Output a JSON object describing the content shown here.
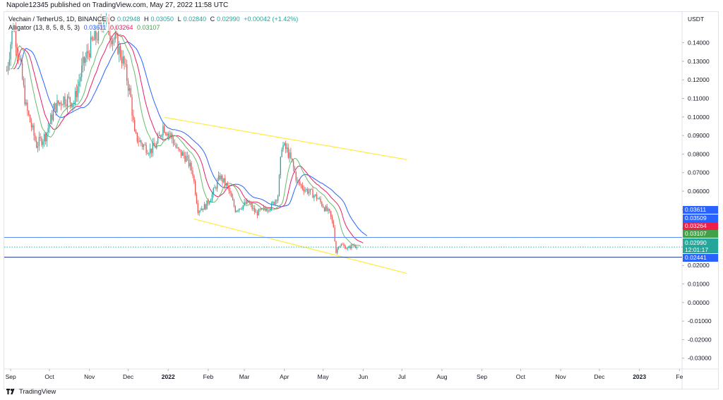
{
  "header": {
    "published": "Napole12345 published on TradingView.com, May 27, 2022 11:58 UTC"
  },
  "legend": {
    "symbol": "Vechain / TetherUS, 1D, BINANCE",
    "o_label": "O",
    "o_val": "0.02948",
    "h_label": "H",
    "h_val": "0.03050",
    "l_label": "L",
    "l_val": "0.02840",
    "c_label": "C",
    "c_val": "0.02990",
    "change": "+0.00042 (+1.42%)",
    "alligator_label": "Alligator (13, 8, 5, 8, 5, 3)",
    "jaw_val": "0.03611",
    "teeth_val": "0.03264",
    "lips_val": "0.03107"
  },
  "colors": {
    "up": "#26a69a",
    "down": "#ef5350",
    "jaw": "#2962ff",
    "teeth": "#e91e63",
    "lips": "#66bb6a",
    "channel": "#ffeb3b",
    "hline": "#2962ff",
    "current": "#26a69a"
  },
  "price_tags": [
    {
      "text": "0.03611",
      "bg": "#2962ff"
    },
    {
      "text": "0.03509",
      "bg": "#2962ff"
    },
    {
      "text": "0.03264",
      "bg": "#ef1f4a"
    },
    {
      "text": "0.03107",
      "bg": "#43a047"
    },
    {
      "text": "0.02441",
      "bg": "#2962ff"
    }
  ],
  "current_tag": {
    "price": "0.02990",
    "countdown": "12:01:17"
  },
  "footer": {
    "brand": "TradingView"
  },
  "chart_data": {
    "type": "candlestick",
    "title": "Vechain / TetherUS, 1D, BINANCE",
    "y_axis_label": "USDT",
    "ylim": [
      -0.035,
      0.1525
    ],
    "y_ticks": [
      "0.14000",
      "0.13000",
      "0.12000",
      "0.11000",
      "0.10000",
      "0.09000",
      "0.08000",
      "0.07000",
      "0.06000",
      "0.05000",
      "0.04000",
      "0.03000",
      "0.02000",
      "0.01000",
      "0.00000",
      "-0.01000",
      "-0.02000",
      "-0.03000"
    ],
    "x_ticks": [
      "Sep",
      "Oct",
      "Nov",
      "Dec",
      "2022",
      "Feb",
      "Mar",
      "Apr",
      "May",
      "Jun",
      "Jul",
      "Aug",
      "Sep",
      "Oct",
      "Nov",
      "Dec",
      "2023",
      "Fe"
    ],
    "close_anchors": [
      [
        "2021-08-29",
        0.125
      ],
      [
        "2021-09-03",
        0.15
      ],
      [
        "2021-09-08",
        0.13
      ],
      [
        "2021-09-13",
        0.105
      ],
      [
        "2021-09-21",
        0.085
      ],
      [
        "2021-09-28",
        0.09
      ],
      [
        "2021-10-05",
        0.105
      ],
      [
        "2021-10-12",
        0.11
      ],
      [
        "2021-10-20",
        0.108
      ],
      [
        "2021-10-27",
        0.128
      ],
      [
        "2021-11-03",
        0.14
      ],
      [
        "2021-11-08",
        0.145
      ],
      [
        "2021-11-12",
        0.155
      ],
      [
        "2021-11-17",
        0.145
      ],
      [
        "2021-11-22",
        0.14
      ],
      [
        "2021-11-28",
        0.128
      ],
      [
        "2021-12-03",
        0.11
      ],
      [
        "2021-12-06",
        0.09
      ],
      [
        "2021-12-12",
        0.085
      ],
      [
        "2021-12-18",
        0.082
      ],
      [
        "2021-12-23",
        0.085
      ],
      [
        "2021-12-28",
        0.095
      ],
      [
        "2022-01-03",
        0.09
      ],
      [
        "2022-01-08",
        0.082
      ],
      [
        "2022-01-15",
        0.078
      ],
      [
        "2022-01-20",
        0.07
      ],
      [
        "2022-01-24",
        0.05
      ],
      [
        "2022-01-30",
        0.052
      ],
      [
        "2022-02-04",
        0.058
      ],
      [
        "2022-02-10",
        0.068
      ],
      [
        "2022-02-16",
        0.062
      ],
      [
        "2022-02-22",
        0.05
      ],
      [
        "2022-02-27",
        0.052
      ],
      [
        "2022-03-04",
        0.054
      ],
      [
        "2022-03-10",
        0.048
      ],
      [
        "2022-03-16",
        0.05
      ],
      [
        "2022-03-22",
        0.052
      ],
      [
        "2022-03-27",
        0.058
      ],
      [
        "2022-03-30",
        0.085
      ],
      [
        "2022-04-03",
        0.082
      ],
      [
        "2022-04-07",
        0.075
      ],
      [
        "2022-04-11",
        0.065
      ],
      [
        "2022-04-17",
        0.061
      ],
      [
        "2022-04-22",
        0.059
      ],
      [
        "2022-04-27",
        0.056
      ],
      [
        "2022-05-02",
        0.051
      ],
      [
        "2022-05-06",
        0.048
      ],
      [
        "2022-05-09",
        0.041
      ],
      [
        "2022-05-11",
        0.027
      ],
      [
        "2022-05-13",
        0.031
      ],
      [
        "2022-05-16",
        0.031
      ],
      [
        "2022-05-20",
        0.029
      ],
      [
        "2022-05-24",
        0.031
      ],
      [
        "2022-05-27",
        0.0299
      ]
    ],
    "alligator": {
      "jaw": {
        "name": "Jaw",
        "period": 13,
        "shift": 8,
        "last": 0.03611
      },
      "teeth": {
        "name": "Teeth",
        "period": 8,
        "shift": 5,
        "last": 0.03264
      },
      "lips": {
        "name": "Lips",
        "period": 5,
        "shift": 3,
        "last": 0.03107
      }
    },
    "trend_lines": [
      {
        "from": [
          "2021-12-29",
          0.0998
        ],
        "to": [
          "2022-07-05",
          0.077
        ]
      },
      {
        "from": [
          "2022-01-21",
          0.045
        ],
        "to": [
          "2022-07-05",
          0.0157
        ]
      }
    ],
    "horizontal_lines": [
      0.03509,
      0.02441
    ],
    "last": {
      "open": 0.02948,
      "high": 0.0305,
      "low": 0.0284,
      "close": 0.0299
    }
  }
}
